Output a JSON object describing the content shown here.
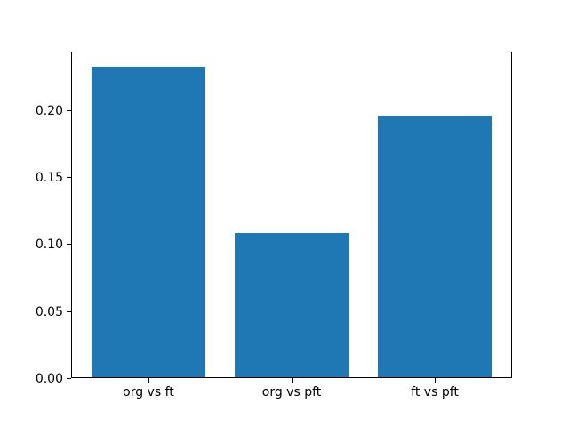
{
  "figure": {
    "background": "#ffffff"
  },
  "chart_data": {
    "type": "bar",
    "title": "",
    "xlabel": "",
    "ylabel": "",
    "categories": [
      "org vs ft",
      "org vs pft",
      "ft vs pft"
    ],
    "values": [
      0.232,
      0.108,
      0.196
    ],
    "bar_color": "#1f77b4",
    "bar_width_fraction": 0.8,
    "xlim": [
      -0.54,
      2.54
    ],
    "ylim": [
      0,
      0.2436
    ],
    "yticks": [
      0,
      0.05,
      0.1,
      0.15,
      0.2
    ],
    "ytick_labels": [
      "0.00",
      "0.05",
      "0.10",
      "0.15",
      "0.20"
    ],
    "grid": false,
    "legend": null
  }
}
